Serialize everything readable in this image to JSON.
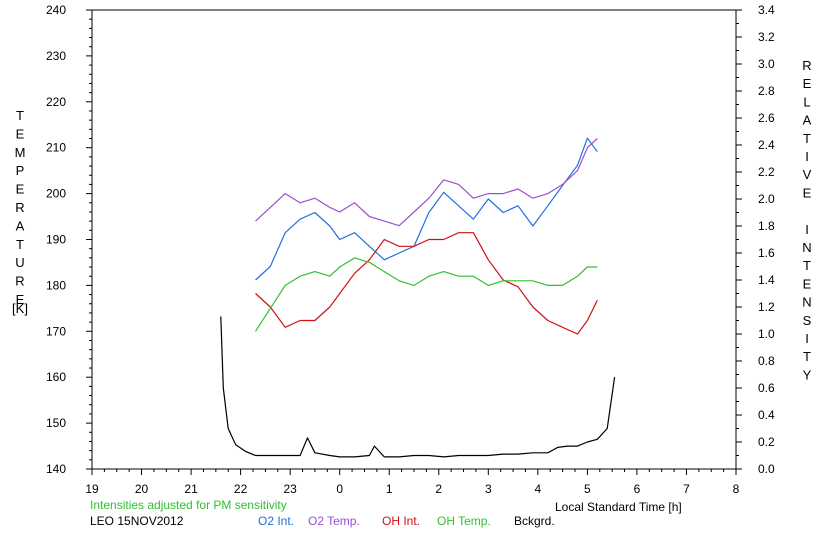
{
  "chart_data": {
    "type": "line",
    "title": "",
    "xlabel": "Local Standard Time [h]",
    "ylabel_left": "TEMPERATURE",
    "ylabel_left_unit": "[K]",
    "ylabel_right": "RELATIVE INTENSITY",
    "x_tick_labels": [
      "19",
      "20",
      "21",
      "22",
      "23",
      "0",
      "1",
      "2",
      "3",
      "4",
      "5",
      "6",
      "7",
      "8"
    ],
    "x_axis_hours": [
      19,
      20,
      21,
      22,
      23,
      24,
      25,
      26,
      27,
      28,
      29,
      30,
      31,
      32
    ],
    "xlim": [
      19,
      32
    ],
    "ylim_left": [
      140,
      240
    ],
    "ylim_right": [
      0.0,
      3.4
    ],
    "y_left_ticks": [
      140,
      150,
      160,
      170,
      180,
      190,
      200,
      210,
      220,
      230,
      240
    ],
    "y_right_ticks": [
      "0.0",
      "0.2",
      "0.4",
      "0.6",
      "0.8",
      "1.0",
      "1.2",
      "1.4",
      "1.6",
      "1.8",
      "2.0",
      "2.2",
      "2.4",
      "2.6",
      "2.8",
      "3.0",
      "3.2",
      "3.4"
    ],
    "grid": false,
    "note": "Intensities adjusted for PM sensitivity",
    "station_date": "LEO 15NOV2012",
    "legend_placement": "bottom",
    "series": [
      {
        "name": "O2 Int.",
        "color": "#1f6fe0",
        "axis": "right",
        "x": [
          22.3,
          22.6,
          22.9,
          23.2,
          23.5,
          23.8,
          24.0,
          24.3,
          24.6,
          24.9,
          25.2,
          25.5,
          25.8,
          26.1,
          26.4,
          26.7,
          27.0,
          27.3,
          27.6,
          27.9,
          28.2,
          28.5,
          28.8,
          29.0,
          29.2
        ],
        "y": [
          1.4,
          1.5,
          1.75,
          1.85,
          1.9,
          1.8,
          1.7,
          1.75,
          1.65,
          1.55,
          1.6,
          1.65,
          1.9,
          2.05,
          1.95,
          1.85,
          2.0,
          1.9,
          1.95,
          1.8,
          1.95,
          2.1,
          2.25,
          2.45,
          2.35
        ]
      },
      {
        "name": "O2 Temp.",
        "color": "#9b4fd0",
        "axis": "left",
        "x": [
          22.3,
          22.6,
          22.9,
          23.2,
          23.5,
          23.8,
          24.0,
          24.3,
          24.6,
          24.9,
          25.2,
          25.5,
          25.8,
          26.1,
          26.4,
          26.7,
          27.0,
          27.3,
          27.6,
          27.9,
          28.2,
          28.5,
          28.8,
          29.0,
          29.2
        ],
        "y": [
          194,
          197,
          200,
          198,
          199,
          197,
          196,
          198,
          195,
          194,
          193,
          196,
          199,
          203,
          202,
          199,
          200,
          200,
          201,
          199,
          200,
          202,
          205,
          210,
          212
        ]
      },
      {
        "name": "OH Int.",
        "color": "#d01010",
        "axis": "right",
        "x": [
          22.3,
          22.6,
          22.9,
          23.2,
          23.5,
          23.8,
          24.0,
          24.3,
          24.6,
          24.9,
          25.2,
          25.5,
          25.8,
          26.1,
          26.4,
          26.7,
          27.0,
          27.3,
          27.6,
          27.9,
          28.2,
          28.5,
          28.8,
          29.0,
          29.2
        ],
        "y": [
          1.3,
          1.2,
          1.05,
          1.1,
          1.1,
          1.2,
          1.3,
          1.45,
          1.55,
          1.7,
          1.65,
          1.65,
          1.7,
          1.7,
          1.75,
          1.75,
          1.55,
          1.4,
          1.35,
          1.2,
          1.1,
          1.05,
          1.0,
          1.1,
          1.25
        ]
      },
      {
        "name": "OH Temp.",
        "color": "#30c030",
        "axis": "left",
        "x": [
          22.3,
          22.6,
          22.9,
          23.2,
          23.5,
          23.8,
          24.0,
          24.3,
          24.6,
          24.9,
          25.2,
          25.5,
          25.8,
          26.1,
          26.4,
          26.7,
          27.0,
          27.3,
          27.6,
          27.9,
          28.2,
          28.5,
          28.8,
          29.0,
          29.2
        ],
        "y": [
          170,
          175,
          180,
          182,
          183,
          182,
          184,
          186,
          185,
          183,
          181,
          180,
          182,
          183,
          182,
          182,
          180,
          181,
          181,
          181,
          180,
          180,
          182,
          184,
          184
        ]
      },
      {
        "name": "Bckgrd.",
        "color": "#000000",
        "axis": "right",
        "x": [
          21.6,
          21.65,
          21.75,
          21.9,
          22.1,
          22.3,
          22.6,
          22.9,
          23.2,
          23.35,
          23.5,
          23.8,
          24.0,
          24.3,
          24.6,
          24.7,
          24.9,
          25.2,
          25.5,
          25.8,
          26.1,
          26.4,
          26.7,
          27.0,
          27.3,
          27.6,
          27.9,
          28.2,
          28.4,
          28.6,
          28.8,
          29.0,
          29.2,
          29.4,
          29.55
        ],
        "y": [
          1.13,
          0.6,
          0.3,
          0.18,
          0.13,
          0.1,
          0.1,
          0.1,
          0.1,
          0.23,
          0.12,
          0.1,
          0.09,
          0.09,
          0.1,
          0.17,
          0.09,
          0.09,
          0.1,
          0.1,
          0.09,
          0.1,
          0.1,
          0.1,
          0.11,
          0.11,
          0.12,
          0.12,
          0.16,
          0.17,
          0.17,
          0.2,
          0.22,
          0.3,
          0.68
        ]
      }
    ]
  }
}
